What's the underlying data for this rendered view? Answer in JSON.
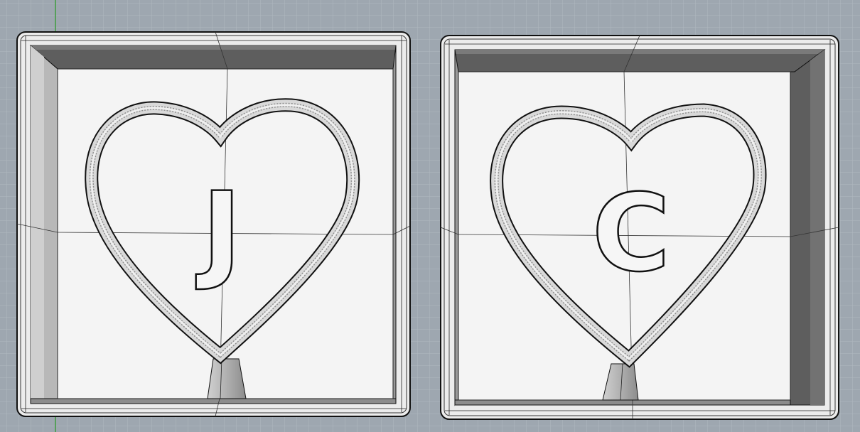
{
  "viewport": {
    "name": "Perspective",
    "background_color": "#9ea7b0",
    "grid_color": "#b3bac2",
    "axis_color": "#3c9a3c"
  },
  "models": [
    {
      "id": "left",
      "letter": "J",
      "shape": "heart"
    },
    {
      "id": "right",
      "letter": "C",
      "shape": "heart"
    }
  ],
  "colors": {
    "inner_face": "#f4f4f4",
    "rim": "#ececec",
    "wall_dark": "#5c5c5c",
    "wall_mid": "#8a8a8a",
    "edge": "#111111",
    "heart_light": "#e8e8e8",
    "heart_shadow": "#9a9a9a"
  }
}
